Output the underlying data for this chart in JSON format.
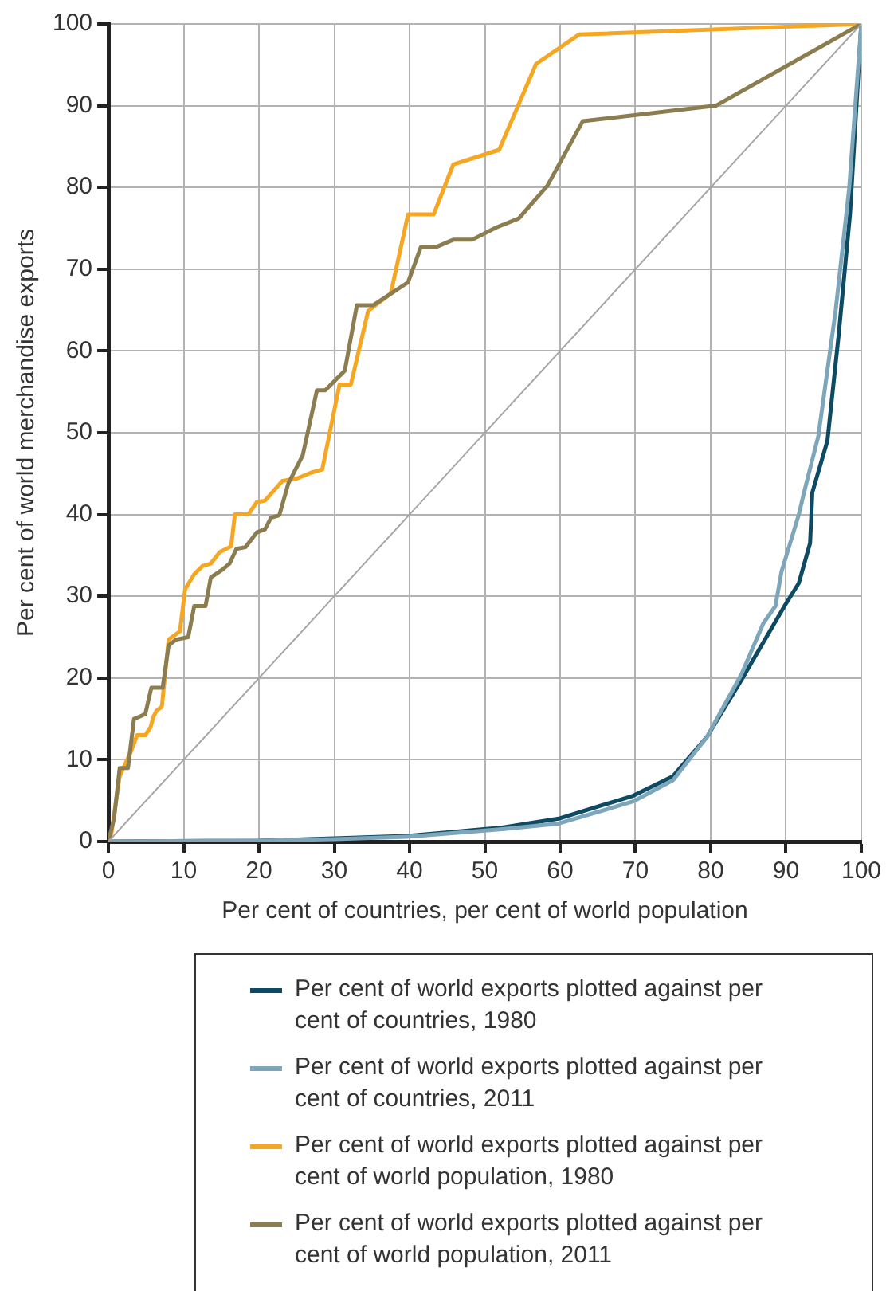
{
  "chart_data": {
    "type": "line",
    "xlabel": "Per cent of countries, per cent of world population",
    "ylabel": "Per cent of world merchandise exports",
    "xlim": [
      0,
      100
    ],
    "xticks": [
      0,
      10,
      20,
      30,
      40,
      50,
      60,
      70,
      80,
      90,
      100
    ],
    "ylim": [
      0,
      100
    ],
    "yticks": [
      0,
      10,
      20,
      30,
      40,
      50,
      60,
      70,
      80,
      90,
      100
    ],
    "grid": true,
    "legend": "bottom",
    "marker": "none",
    "line_style": "solid",
    "series": [
      {
        "name": "Per cent of world exports plotted against per cent of countries, 1980",
        "color": "#0d4a63",
        "x": [
          0,
          20,
          30,
          40,
          52.3,
          59.8,
          69.7,
          75,
          79.5,
          84.1,
          89.8,
          91.7,
          93.2,
          93.5,
          95.5,
          97,
          98.5,
          100
        ],
        "values": [
          0,
          0.1,
          0.4,
          0.7,
          1.7,
          2.8,
          5.6,
          8,
          12.8,
          19.8,
          28.8,
          31.6,
          36.5,
          42.7,
          49,
          62,
          76.7,
          100
        ]
      },
      {
        "name": "Per cent of world exports plotted against per cent of countries, 2011",
        "color": "#7ea6bb",
        "x": [
          0,
          20,
          30,
          40,
          52.3,
          59.8,
          69.7,
          75,
          79.5,
          84.1,
          87,
          88.6,
          89.4,
          91.7,
          92.4,
          94.3,
          96.6,
          98.4,
          100
        ],
        "values": [
          0,
          0.1,
          0.3,
          0.6,
          1.5,
          2.2,
          4.9,
          7.5,
          12.8,
          20.5,
          26.7,
          28.8,
          33,
          40,
          42.7,
          49.6,
          65,
          80,
          100
        ]
      },
      {
        "name": "Per cent of world exports plotted against per cent of world population, 1980",
        "color": "#f5a623",
        "x": [
          0,
          0.4,
          1.5,
          3,
          3.8,
          4.9,
          5.6,
          6,
          6.4,
          7.1,
          8,
          9.5,
          10.2,
          11.4,
          12.5,
          13.6,
          14.8,
          16.3,
          16.8,
          18.6,
          19.7,
          20.8,
          23.1,
          25,
          26.9,
          28.4,
          30.7,
          32.2,
          34.5,
          37.5,
          39.8,
          43.2,
          45.8,
          51.9,
          56.8,
          62.5,
          100
        ],
        "values": [
          0,
          1,
          8,
          11,
          13,
          13,
          14,
          15.3,
          16,
          16.5,
          24.7,
          25.7,
          30.9,
          32.7,
          33.7,
          34,
          35.4,
          36.1,
          40,
          40,
          41.5,
          41.7,
          44.1,
          44.4,
          45.1,
          45.5,
          55.9,
          55.9,
          64.9,
          67,
          76.7,
          76.7,
          82.8,
          84.6,
          95.1,
          98.7,
          100
        ]
      },
      {
        "name": "Per cent of world exports plotted against per cent of world population, 2011",
        "color": "#8b7d4f",
        "x": [
          0,
          0.75,
          1.5,
          2.6,
          3.4,
          4.2,
          4.9,
          5.7,
          7.2,
          8,
          9,
          10.6,
          11.4,
          12.9,
          13.6,
          15.2,
          16.1,
          17,
          18.2,
          19.7,
          20.8,
          21.6,
          22.7,
          23.9,
          25.8,
          27.7,
          28.8,
          31.4,
          33,
          35.2,
          37.5,
          39.8,
          41.5,
          43.5,
          45.8,
          48.3,
          51.5,
          54.5,
          58.3,
          63,
          80.7,
          100
        ],
        "values": [
          0,
          2.8,
          9,
          9,
          15,
          15.3,
          15.6,
          18.8,
          18.8,
          24,
          24.7,
          25,
          28.8,
          28.8,
          32.3,
          33.3,
          34,
          35.8,
          36,
          37.8,
          38.2,
          39.6,
          39.9,
          43.8,
          47.2,
          55.2,
          55.2,
          57.6,
          65.6,
          65.6,
          67,
          68.4,
          72.7,
          72.7,
          73.6,
          73.6,
          75.1,
          76.2,
          80.2,
          88.1,
          90,
          100
        ]
      },
      {
        "color": "#a6a6a6",
        "x": [
          0,
          100
        ],
        "values": [
          0,
          100
        ]
      }
    ]
  }
}
